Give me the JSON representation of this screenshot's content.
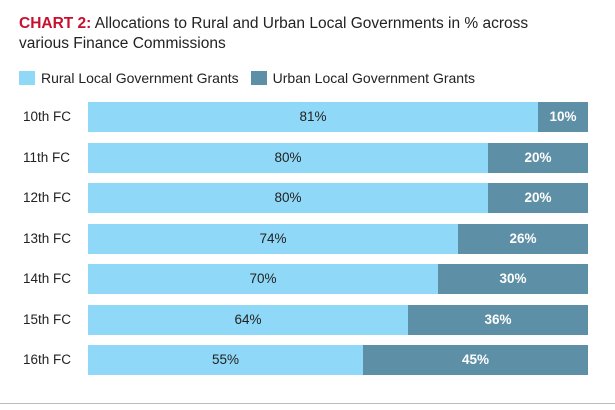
{
  "title": {
    "lead": "CHART 2:",
    "text": " Allocations to Rural and Urban Local Governments in % across various Finance Commissions"
  },
  "colors": {
    "title_accent": "#c8102e",
    "rural": "#8fd8f7",
    "urban": "#5d8fa6"
  },
  "chart_data": {
    "type": "bar",
    "orientation": "horizontal",
    "stacked": true,
    "title": "CHART 2: Allocations to Rural and Urban Local Governments in % across various Finance Commissions",
    "xlabel": "",
    "ylabel": "",
    "xlim": [
      0,
      100
    ],
    "categories": [
      "10th FC",
      "11th FC",
      "12th FC",
      "13th FC",
      "14th FC",
      "15th FC",
      "16th FC"
    ],
    "series": [
      {
        "name": "Rural Local Government Grants",
        "values": [
          81,
          80,
          80,
          74,
          70,
          64,
          55
        ],
        "labels": [
          "81%",
          "80%",
          "80%",
          "74%",
          "70%",
          "64%",
          "55%"
        ]
      },
      {
        "name": "Urban Local Government Grants",
        "values": [
          10,
          20,
          20,
          26,
          30,
          36,
          45
        ],
        "labels": [
          "10%",
          "20%",
          "20%",
          "26%",
          "30%",
          "36%",
          "45%"
        ]
      }
    ],
    "legend": "top-left"
  }
}
